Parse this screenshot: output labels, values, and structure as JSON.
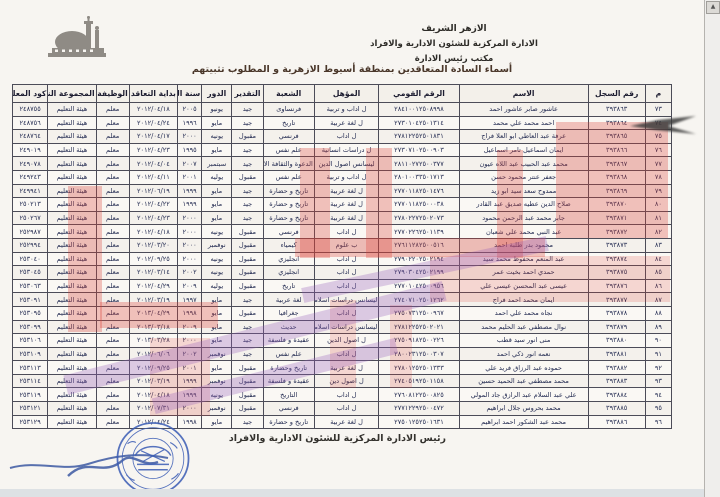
{
  "header": {
    "org_line1": "الازهر الشريف",
    "org_line2": "الادارة المركزية للشئون الادارية والافراد",
    "org_line3": "مكتب رئيس الادارة",
    "title": "أسماء السادة المتعاقدين بمنطقة أسيوط الازهرية و المطلوب تثبيتهم"
  },
  "footer": {
    "title": "رئيس الادارة المركزية للشئون الادارية والافراد"
  },
  "scrollbar": {
    "up_arrow": "▲"
  },
  "icons": {
    "logo": "azhar-mosque-logo",
    "stamp": "blue-round-official-stamp",
    "watermarks": "red-and-purple-stamp-overlays"
  },
  "colors": {
    "stamp_blue": "#3a5cb5",
    "stamp_red": "rgba(219,62,52,0.3)",
    "stamp_purple": "rgba(148,92,186,0.3)",
    "table_text": "#242c52"
  },
  "table": {
    "columns": [
      "م",
      "رقم السجل",
      "الاسم",
      "الرقم القومي",
      "المؤهل",
      "الشعبة",
      "التقدير",
      "الدور",
      "سنة التخرج",
      "بداية التعاقد",
      "الوظيفة",
      "المجموعة النوعية",
      "كود المعلم"
    ],
    "rows": [
      [
        "٧٣",
        "٣٩٣٨٦٣",
        "عاشور صابر عاشور احمد",
        "٢٨٤١٠٠١٢٥٠٨٩٩٨",
        "ل اداب و تربية",
        "فرنساوى",
        "جيد",
        "يونيو",
        "٢٠٠٥",
        "٢٠١٢/٠٤/١٨",
        "معلم",
        "هيئة التعليم",
        "٢٤٨٧٥٥"
      ],
      [
        "٧٤",
        "٣٩٣٨٦٤",
        "احمد محمد علي محمد",
        "٢٧٣٠١٠٤٢٥٠١٣١٤",
        "ل لغة عربية",
        "تاريخ",
        "جيد",
        "مايو",
        "١٩٩٦",
        "٢٠١٢/٠٤/٢٤",
        "معلم",
        "هيئة التعليم",
        "٢٤٨٧٥٦"
      ],
      [
        "٧٥",
        "٣٩٣٨٦٥",
        "عرفة عبد العاطي ابو العلا فراج",
        "٢٧٨١٢٢٥٢٥٠١٨٣١",
        "ل اداب",
        "فرنسي",
        "مقبول",
        "يونيه",
        "٢٠٠٠",
        "٢٠١٢/٠٤/١٧",
        "معلم",
        "هيئة التعليم",
        "٢٤٨٧٦٤"
      ],
      [
        "٧٦",
        "٣٩٣٨٦٦",
        "ايمان اسماعيل تامر اسماعيل",
        "٢٧٣٠٧١٠٢٥٠٠٩٠٣",
        "ل دراسات انسانية",
        "علم نفس",
        "جيد",
        "مايو",
        "١٩٩٥",
        "٢٠١٢/٠٤/٢٣",
        "معلم",
        "هيئة التعليم",
        "٢٤٩٠١٩"
      ],
      [
        "٧٧",
        "٣٩٣٨٦٧",
        "محمد عبد الحبيب عبد اللاه عيون",
        "٢٨١١٠٢٧٢٥٠٠٣٧٧",
        "ليسانس اصول الدين",
        "الدعوة والثقافة الاسلامية",
        "جيد",
        "سبتمبر",
        "٢٠٠٧",
        "٢٠١٢/٠٤/٠٤",
        "معلم",
        "هيئة التعليم",
        "٢٤٩٠٧٨"
      ],
      [
        "٧٨",
        "٣٩٣٨٦٨",
        "جعفر عنتر محمود حسن",
        "٢٨٠١٠٠٣٣٥٠١٧١٣",
        "ل اداب و تربية",
        "علم نفس",
        "مقبول",
        "يوليه",
        "٢٠٠١",
        "٢٠١٢/٠٤/١١",
        "معلم",
        "هيئة التعليم",
        "٢٤٩٢٤٣"
      ],
      [
        "٧٩",
        "٣٩٣٨٦٩",
        "ممدوح سعد سيد ابو زيد",
        "٢٧٧٠١١٨٢٥٠١٤٧٦",
        "ل لغة عربية",
        "تاريخ و حضارة",
        "جيد",
        "مايو",
        "١٩٩٩",
        "٢٠١٢/٠٦/١٩",
        "معلم",
        "هيئة التعليم",
        "٢٤٩٩٤١"
      ],
      [
        "٨٠",
        "٣٩٣٨٧٠",
        "صلاح الدين عطيه صديق عبد القادر",
        "٢٧٧٠١١٨٢٥٠٠٠٣٨",
        "ل لغة عربية",
        "تاريخ و حضارة",
        "جيد",
        "مايو",
        "١٩٩٩",
        "٢٠١٢/٠٤/٢٢",
        "معلم",
        "هيئة التعليم",
        "٢٥٠٢١٣"
      ],
      [
        "٨١",
        "٣٩٣٨٧١",
        "جابر محمد عبد الرحمن محمود",
        "٢٧٨٠٢٢٧٢٥٠٢٠٧٣",
        "ل لغة عربية",
        "تاريخ و حضارة",
        "جيد",
        "مايو",
        "٢٠٠٠",
        "٢٠١٢/٠٤/٢٣",
        "معلم",
        "هيئة التعليم",
        "٢٥٠٢٦٧"
      ],
      [
        "٨٢",
        "٣٩٣٨٧٢",
        "عبد النبي محمد علي شعبان",
        "٢٧٧٠٢٢٦٢٥٠١١٣٩",
        "ل اداب",
        "فرنسي",
        "مقبول",
        "يونيه",
        "٢٠٠٠",
        "٢٠١٢/٠٤/١٨",
        "معلم",
        "هيئة التعليم",
        "٢٥٢٩٨٧"
      ],
      [
        "٨٣",
        "٣٩٣٨٧٣",
        "محمود بدر طلبة احمد",
        "٢٧٦١١٢٨٢٥٠٠٥١٦",
        "ب علوم",
        "كيمياء",
        "مقبول",
        "نوفمبر",
        "٢٠٠٠",
        "٢٠١٢/٠٣/٢٠",
        "معلم",
        "هيئة التعليم",
        "٢٥٢٩٩٤"
      ],
      [
        "٨٤",
        "٣٩٣٨٧٤",
        "عبد المنعم محفوظ محمد سيد",
        "٢٧٩٠٢٢٠٢٥٠٢١٩٤",
        "ل اداب",
        "انجليزي",
        "مقبول",
        "يونيه",
        "٢٠٠٠",
        "٢٠١٢/٠٩/٢٥",
        "معلم",
        "هيئة التعليم",
        "٢٥٣٠٤٠"
      ],
      [
        "٨٥",
        "٣٩٣٨٧٥",
        "حمدي احمد بخيت عمر",
        "٢٧٩٠٣٠٤٢٥٠٢١٩٩",
        "ل اداب",
        "انجليزي",
        "مقبول",
        "يونيه",
        "٢٠٠٢",
        "٢٠١٢/٠٣/١٤",
        "معلم",
        "هيئة التعليم",
        "٢٥٣٠٤٥"
      ],
      [
        "٨٦",
        "٣٩٣٨٧٦",
        "عيسى عبد المحسن عيسى علي",
        "٢٧٧٠١٠٤٢٥٠٠٩٥٦",
        "ل اداب",
        "تاريخ",
        "مقبول",
        "يوليه",
        "٢٠٠٩",
        "٢٠١٢/٠٤/٢٩",
        "معلم",
        "هيئة التعليم",
        "٢٥٣٠٦٣"
      ],
      [
        "٨٧",
        "٣٩٣٨٧٧",
        "ايمان محمد احمد فراج",
        "٢٧٤٠٧١٠٢٥٠١٢٦٢",
        "ليسانس دراسات اسلامية",
        "لغة عربية",
        "جيد",
        "مايو",
        "١٩٩٧",
        "٢٠١٢/٠٣/١٩",
        "معلم",
        "هيئة التعليم",
        "٢٥٣٠٩١"
      ],
      [
        "٨٨",
        "٣٩٣٨٧٨",
        "نجاه محمد علي احمد",
        "٢٧٥٠٧٣١٢٥٠٠٩٦٧",
        "ل اداب",
        "جغرافيا",
        "مقبول",
        "مايو",
        "١٩٩٨",
        "٢٠١٣/٠٤/٢٩",
        "معلم",
        "هيئة التعليم",
        "٢٥٣٠٩٥"
      ],
      [
        "٨٩",
        "٣٩٣٨٧٩",
        "نوال مصطفي عبد الحليم محمد",
        "٢٧٨١٢٢٥٢٥٠٢٠٢١",
        "ليسانس دراسات اسلامية",
        "حديث",
        "جيد",
        "مايو",
        "٢٠٠٩",
        "٢٠١٣/٠٣/١٨",
        "معلم",
        "هيئة التعليم",
        "٢٥٣٠٩٩"
      ],
      [
        "٩٠",
        "٣٩٣٨٨٠",
        "منى انور سيد قطب",
        "٢٧٥٠٩١٨٢٥٠٠٢٢٦",
        "ل اصول الدين",
        "عقيدة و فلسفة",
        "جيد",
        "مايو",
        "٢٠٠٠",
        "٢٠١٣/٠٣/٢٨",
        "معلم",
        "هيئة التعليم",
        "٢٥٣١٠٦"
      ],
      [
        "٩١",
        "٣٩٣٨٨١",
        "نعمه انور ذكي احمد",
        "٢٨٠٠٢٣١٢٥٠٠٣٠٧",
        "ل اداب",
        "علم نفس",
        "جيد",
        "نوفمبر",
        "٢٠٠٢",
        "٢٠١٢/٠٦/٠٦",
        "معلم",
        "هيئة التعليم",
        "٢٥٣١٠٩"
      ],
      [
        "٩٢",
        "٣٩٣٨٨٢",
        "حموده عبد الرزاق فريد علي",
        "٢٧٨٠١٢٥٢٥٠١٣٣٣",
        "ل لغة عربية",
        "تاريخ وحضارة",
        "مقبول",
        "مايو",
        "٢٠٠١",
        "٢٠١٢/٠٩/٢٥",
        "معلم",
        "هيئة التعليم",
        "٢٥٣١١٣"
      ],
      [
        "٩٣",
        "٣٩٣٨٨٣",
        "محمد مصطفي عبد الحميد حسين",
        "٢٧٤٠٥١٩٢٥٠١١٥٨",
        "ل اصول دين",
        "عقيدة و فلسفة",
        "مقبول",
        "نوفمبر",
        "١٩٩٩",
        "٢٠١٢/٠٣/١٩",
        "معلم",
        "هيئة التعليم",
        "٢٥٣١١٤"
      ],
      [
        "٩٤",
        "٣٩٣٨٨٤",
        "علي عبد السلام عبد الرازق جاد المولي",
        "٢٧٦٠٨١٢٢٥٠٠٨٢٥",
        "ل اداب",
        "التاريخ",
        "مقبول",
        "يونيه",
        "١٩٩٩",
        "٢٠١٢/٠٤/١٨",
        "معلم",
        "هيئة التعليم",
        "٢٥٣١١٩"
      ],
      [
        "٩٥",
        "٣٩٣٨٨٥",
        "محمد بحروس جلال ابراهيم",
        "٢٧٧١٢٢٩٢٥٠٠٤٧٢",
        "ل اداب",
        "فرنسي",
        "مقبول",
        "نوفمبر",
        "٢٠٠٠",
        "٢٠١٢/٠٧/٣١",
        "معلم",
        "هيئة التعليم",
        "٢٥٣١٢١"
      ],
      [
        "٩٦",
        "٣٩٣٨٨٦",
        "محمد عبد الشكور احمد ابراهيم",
        "٢٧٥٠١٢٥٢٥٠١٦٣١",
        "ل لغة عربية",
        "تاريخ و حضارة",
        "جيد",
        "مايو",
        "١٩٩٨",
        "٢٠١٢/٠٤/٢٤",
        "معلم",
        "هيئة التعليم",
        "٢٥٣١٢٩"
      ]
    ]
  }
}
